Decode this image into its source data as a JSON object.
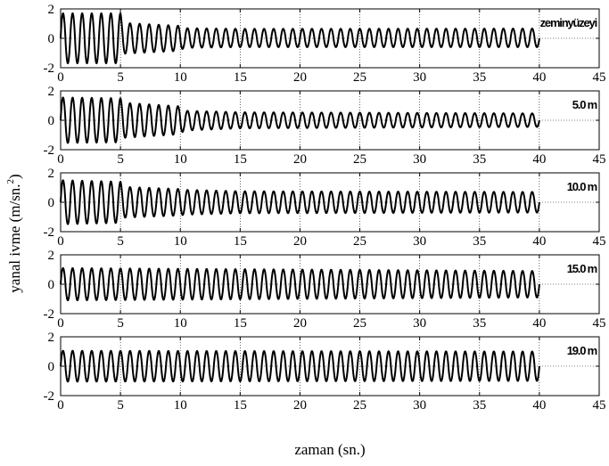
{
  "chart_data": {
    "type": "line",
    "xlabel": "zaman (sn.)",
    "ylabel_main": "yanal ivme (m/sn.",
    "ylabel_sup": "2",
    "ylabel_tail": ")",
    "xlim": [
      0,
      45
    ],
    "x_ticks": [
      "0",
      "5",
      "10",
      "15",
      "20",
      "25",
      "30",
      "35",
      "40",
      "45"
    ],
    "ylim": [
      -2,
      2
    ],
    "y_ticks": [
      "2",
      "0",
      "-2"
    ],
    "grid": true,
    "panels": [
      {
        "label": "zeminyüzeyi",
        "period": 0.8,
        "duration": 40,
        "envelope": [
          [
            0,
            1.7
          ],
          [
            5,
            1.7
          ],
          [
            5.2,
            1.05
          ],
          [
            10,
            0.85
          ],
          [
            10.3,
            0.65
          ],
          [
            15,
            0.6
          ],
          [
            40,
            0.6
          ]
        ],
        "asymmetry": [
          [
            0,
            1.0
          ],
          [
            10,
            1.0
          ],
          [
            10.3,
            1.45
          ],
          [
            40,
            1.6
          ]
        ]
      },
      {
        "label": "5.0 m",
        "period": 0.8,
        "duration": 40,
        "envelope": [
          [
            0,
            1.55
          ],
          [
            5,
            1.5
          ],
          [
            5.2,
            1.2
          ],
          [
            10,
            0.95
          ],
          [
            10.3,
            0.7
          ],
          [
            15,
            0.55
          ],
          [
            40,
            0.45
          ]
        ],
        "asymmetry": [
          [
            0,
            1.0
          ],
          [
            10,
            1.0
          ],
          [
            15,
            1.2
          ],
          [
            40,
            1.35
          ]
        ]
      },
      {
        "label": "10.0 m",
        "period": 0.8,
        "duration": 40,
        "envelope": [
          [
            0,
            1.5
          ],
          [
            5,
            1.4
          ],
          [
            5.2,
            1.05
          ],
          [
            10,
            0.9
          ],
          [
            10.3,
            0.85
          ],
          [
            15,
            0.75
          ],
          [
            40,
            0.7
          ]
        ],
        "asymmetry": [
          [
            0,
            1.0
          ],
          [
            40,
            1.0
          ]
        ]
      },
      {
        "label": "15.0 m",
        "period": 0.8,
        "duration": 40,
        "envelope": [
          [
            0,
            1.1
          ],
          [
            40,
            0.9
          ]
        ],
        "asymmetry": [
          [
            0,
            1.0
          ],
          [
            40,
            1.0
          ]
        ]
      },
      {
        "label": "19.0 m",
        "period": 0.8,
        "duration": 40,
        "envelope": [
          [
            0,
            1.05
          ],
          [
            40,
            1.0
          ]
        ],
        "asymmetry": [
          [
            0,
            1.0
          ],
          [
            40,
            1.0
          ]
        ]
      }
    ]
  }
}
